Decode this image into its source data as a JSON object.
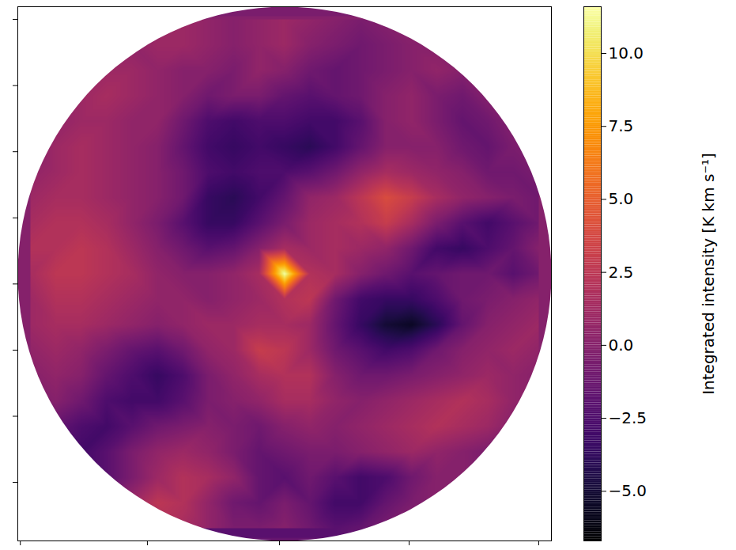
{
  "chart_data": {
    "type": "heatmap",
    "color": "inferno",
    "tick_labels": false,
    "xlim": [
      -10.5,
      10.5
    ],
    "ylim": [
      -10.5,
      10.5
    ],
    "xticks": [
      -10.4,
      -5.4,
      -0.2,
      4.9,
      10.0
    ],
    "yticks": [
      10.0,
      7.4,
      4.8,
      2.2,
      -0.4,
      -3.0,
      -5.6,
      -8.2
    ],
    "x": [
      -10,
      -9,
      -8,
      -7,
      -6,
      -5,
      -4,
      -3,
      -2,
      -1,
      0,
      1,
      2,
      3,
      4,
      5,
      6,
      7,
      8,
      9,
      10
    ],
    "y": [
      10,
      9,
      8,
      7,
      6,
      5,
      4,
      3,
      2,
      1,
      0,
      -1,
      -2,
      -3,
      -4,
      -5,
      -6,
      -7,
      -8,
      -9,
      -10
    ],
    "cells": [
      [
        null,
        null,
        null,
        null,
        null,
        0.5,
        1,
        0.5,
        0,
        0.5,
        1,
        0.5,
        0,
        -0.5,
        0,
        0.5,
        null,
        null,
        null,
        null,
        null
      ],
      [
        null,
        null,
        null,
        null,
        0.5,
        1,
        1,
        0.5,
        0,
        0.5,
        1,
        0,
        -0.5,
        -1,
        -0.5,
        0,
        0,
        null,
        null,
        null,
        null
      ],
      [
        null,
        null,
        null,
        1,
        1,
        0.5,
        0,
        0,
        -0.5,
        0.5,
        0,
        -1,
        -1.5,
        -1,
        -0.5,
        0,
        0.5,
        0,
        null,
        null,
        null
      ],
      [
        null,
        null,
        1,
        1.5,
        1,
        0.5,
        0,
        -1,
        -0.5,
        -0.5,
        -1.5,
        -2,
        -1.5,
        -1,
        0,
        0.5,
        -0.5,
        -1,
        0,
        null,
        null
      ],
      [
        null,
        0.5,
        1,
        1,
        0.5,
        0.5,
        -1,
        -2.5,
        -3,
        -2.5,
        -2.5,
        -3,
        -3,
        -2,
        0,
        0.5,
        -0.5,
        -1.5,
        -1,
        0,
        null
      ],
      [
        0,
        1,
        1.5,
        1,
        0.5,
        0,
        -1.5,
        -3,
        -3.5,
        -3,
        -3.5,
        -4,
        -3,
        -1.5,
        0,
        0,
        0,
        -1,
        -1.5,
        -0.5,
        0
      ],
      [
        0.5,
        1,
        1.5,
        1,
        0.5,
        0,
        -1,
        -2.5,
        -3,
        -2.5,
        -2.5,
        -2,
        -1,
        0.5,
        1.5,
        1,
        0.5,
        0,
        -1,
        -1,
        -0.5
      ],
      [
        1,
        1.5,
        1.5,
        1,
        0.5,
        0,
        -1,
        -3.5,
        -4,
        -3,
        -1.5,
        0.5,
        1,
        2.5,
        4,
        3,
        1.5,
        0.5,
        0,
        -0.5,
        -1
      ],
      [
        1.5,
        2,
        2,
        1.5,
        0.5,
        -0.5,
        -2,
        -3.5,
        -3.5,
        -2,
        -0.5,
        1,
        1.5,
        2,
        3,
        1.5,
        -0.5,
        -2,
        -3,
        -2,
        -1
      ],
      [
        2,
        2,
        2.5,
        2,
        1,
        0,
        -1,
        -2,
        -1.5,
        0,
        1.5,
        1,
        1.5,
        1,
        0.5,
        -1,
        -3,
        -3.5,
        -2.5,
        -1.5,
        0
      ],
      [
        1.5,
        2.5,
        2.5,
        2,
        1.5,
        0.5,
        0,
        0,
        0.5,
        1.5,
        11.5,
        2,
        1.5,
        0,
        -1,
        -2,
        -1.5,
        -1,
        -1,
        -2,
        -1
      ],
      [
        1,
        2,
        2,
        1.5,
        1,
        0.5,
        0.5,
        0,
        0.5,
        1,
        2,
        2.5,
        -1,
        -3,
        -3.5,
        -3.5,
        -2.5,
        -1,
        -0.5,
        0,
        0.5
      ],
      [
        1,
        1.5,
        1.5,
        1,
        0.5,
        0,
        0.5,
        1,
        1,
        1.5,
        1.5,
        1,
        -1.5,
        -3.5,
        -5,
        -5.5,
        -4,
        -1.5,
        0,
        0.5,
        1
      ],
      [
        0.5,
        1,
        0.5,
        -0.5,
        -1.5,
        -2,
        -1,
        0.5,
        1,
        3,
        2.5,
        1,
        -1,
        -2,
        -3,
        -2.5,
        -1,
        0,
        0.5,
        1,
        0.5
      ],
      [
        0,
        0.5,
        0,
        -1.5,
        -2.5,
        -3.5,
        -2.5,
        -0.5,
        0.5,
        1.5,
        2,
        2,
        0,
        -1,
        -1,
        -0.5,
        0,
        0.5,
        1,
        0.5,
        0
      ],
      [
        -0.5,
        0,
        -1,
        -2.5,
        -3,
        -3,
        -2,
        -0.5,
        0,
        0.5,
        1.5,
        1.5,
        0.5,
        0,
        0.5,
        1,
        1.5,
        2,
        1.5,
        0.5,
        0
      ],
      [
        null,
        -1.5,
        -2.5,
        -3,
        -2,
        -1,
        -0.5,
        0,
        -0.5,
        -1,
        0,
        0.5,
        0,
        0.5,
        1,
        1.5,
        2,
        1.5,
        1,
        0,
        null
      ],
      [
        null,
        null,
        -3,
        -2,
        -0.5,
        0.5,
        1,
        0.5,
        -0.5,
        -1.5,
        -1,
        -0.5,
        -0.5,
        0,
        0.5,
        1,
        0.5,
        0,
        -0.5,
        null,
        null
      ],
      [
        null,
        null,
        null,
        -2,
        -0.5,
        1,
        2,
        1.5,
        0.5,
        -1.5,
        -2,
        -1,
        -2,
        -3,
        -2.5,
        -1,
        0,
        0,
        null,
        null,
        null
      ],
      [
        null,
        null,
        null,
        null,
        1,
        2.5,
        2,
        0.5,
        -1,
        -1.5,
        -0.5,
        -1.5,
        -3,
        -3,
        -1.5,
        -0.5,
        0,
        null,
        null,
        null,
        null
      ],
      [
        null,
        null,
        null,
        null,
        null,
        1,
        1.5,
        0.5,
        -0.5,
        -0.5,
        0,
        -1,
        -2,
        -1.5,
        -0.5,
        0,
        null,
        null,
        null,
        null,
        null
      ]
    ],
    "colorbar": {
      "label": "Integrated intensity [K km s⁻¹]",
      "range": [
        -6.7,
        11.6
      ],
      "ticks": [
        {
          "value": -5.0,
          "label": "−5.0"
        },
        {
          "value": -2.5,
          "label": "−2.5"
        },
        {
          "value": 0.0,
          "label": "0.0"
        },
        {
          "value": 2.5,
          "label": "2.5"
        },
        {
          "value": 5.0,
          "label": "5.0"
        },
        {
          "value": 7.5,
          "label": "7.5"
        },
        {
          "value": 10.0,
          "label": "10.0"
        }
      ]
    }
  }
}
